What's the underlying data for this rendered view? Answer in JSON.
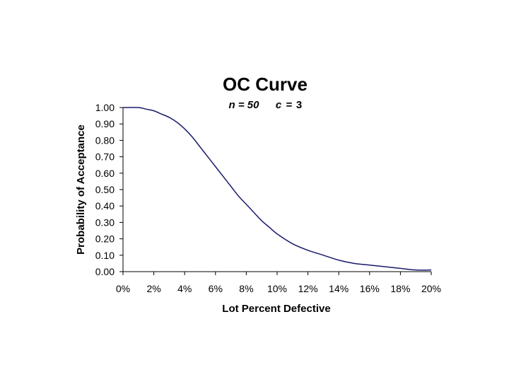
{
  "chart_data": {
    "type": "line",
    "title": "OC Curve",
    "subtitle": {
      "n_label": "n = 50",
      "c_var": "c",
      "c_eq": "=",
      "c_value": "3"
    },
    "xlabel": "Lot Percent Defective",
    "ylabel": "Probability of Acceptance",
    "xlim": [
      0,
      0.2
    ],
    "ylim": [
      0,
      1.0
    ],
    "x_ticks": [
      "0%",
      "2%",
      "4%",
      "6%",
      "8%",
      "10%",
      "12%",
      "14%",
      "16%",
      "18%",
      "20%"
    ],
    "y_ticks": [
      "0.00",
      "0.10",
      "0.20",
      "0.30",
      "0.40",
      "0.50",
      "0.60",
      "0.70",
      "0.80",
      "0.90",
      "1.00"
    ],
    "grid": false,
    "line_color": "#1a1a6e",
    "series": [
      {
        "x": [
          0,
          0.01,
          0.015,
          0.02,
          0.025,
          0.03,
          0.035,
          0.04,
          0.045,
          0.05,
          0.055,
          0.06,
          0.065,
          0.07,
          0.075,
          0.08,
          0.085,
          0.09,
          0.095,
          0.1,
          0.11,
          0.12,
          0.13,
          0.14,
          0.15,
          0.16,
          0.17,
          0.18,
          0.19,
          0.2
        ],
        "y": [
          1.0,
          1.0,
          0.99,
          0.98,
          0.96,
          0.94,
          0.91,
          0.87,
          0.82,
          0.76,
          0.7,
          0.64,
          0.58,
          0.52,
          0.46,
          0.41,
          0.36,
          0.31,
          0.27,
          0.23,
          0.17,
          0.13,
          0.1,
          0.07,
          0.05,
          0.04,
          0.03,
          0.02,
          0.01,
          0.01
        ]
      }
    ]
  }
}
